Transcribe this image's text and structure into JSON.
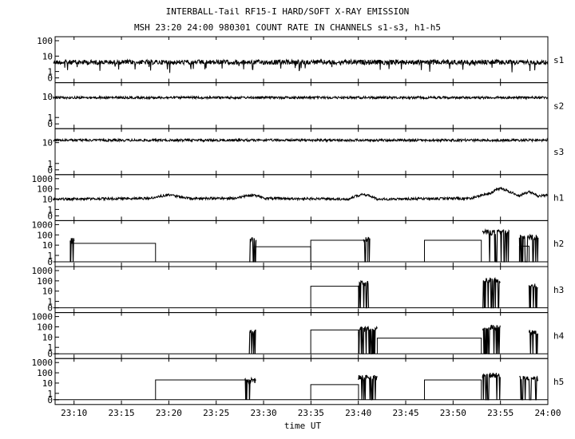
{
  "header": {
    "title": "INTERBALL-Tail RF15-I HARD/SOFT X-RAY EMISSION",
    "subtitle": "MSH 23:20 24:00 980301  COUNT RATE IN CHANNELS s1-s3, h1-h5"
  },
  "chart_data": {
    "type": "line",
    "xlabel": "time UT",
    "x_range": [
      "23:08",
      "24:00"
    ],
    "x_ticks": [
      "23:10",
      "23:15",
      "23:20",
      "23:25",
      "23:30",
      "23:35",
      "23:40",
      "23:45",
      "23:50",
      "23:55",
      "24:00"
    ],
    "yscale": "log",
    "grid": false,
    "panels": [
      {
        "name": "s1",
        "yticks": [
          "100",
          "10",
          "1",
          "0"
        ],
        "ymax": 100,
        "baseline": [
          [
            23.13,
            4
          ]
        ],
        "segments": []
      },
      {
        "name": "s2",
        "yticks": [
          "10",
          "1",
          "0"
        ],
        "ymax": 30,
        "baseline": [
          [
            23.13,
            9
          ]
        ],
        "segments": []
      },
      {
        "name": "s3",
        "yticks": [
          "10",
          "1",
          "0"
        ],
        "ymax": 30,
        "baseline": [
          [
            23.13,
            13
          ]
        ],
        "segments": []
      },
      {
        "name": "h1",
        "yticks": [
          "1000",
          "100",
          "10",
          "1",
          "0"
        ],
        "ymax": 1000,
        "baseline": [
          [
            23.13,
            10
          ],
          [
            23.3,
            12
          ],
          [
            23.333,
            25
          ],
          [
            23.367,
            12
          ],
          [
            23.45,
            12
          ],
          [
            23.483,
            25
          ],
          [
            23.5,
            12
          ],
          [
            23.65,
            10
          ],
          [
            23.675,
            30
          ],
          [
            23.7,
            10
          ],
          [
            23.867,
            12
          ],
          [
            23.9,
            35
          ],
          [
            23.917,
            120
          ],
          [
            23.933,
            50
          ],
          [
            23.95,
            20
          ],
          [
            23.967,
            50
          ],
          [
            23.983,
            20
          ],
          [
            24.0,
            25
          ]
        ],
        "segments": []
      },
      {
        "name": "h2",
        "yticks": [
          "1000",
          "100",
          "10",
          "1",
          "0"
        ],
        "ymax": 1000,
        "baseline": [
          [
            23.13,
            0
          ]
        ],
        "segments": [
          [
            23.16,
            23.31,
            15
          ],
          [
            23.483,
            23.583,
            7
          ],
          [
            23.583,
            23.683,
            30
          ],
          [
            23.783,
            23.883,
            30
          ],
          [
            23.95,
            23.967,
            8
          ]
        ],
        "bursts": [
          [
            23.16,
            23.167,
            50
          ],
          [
            23.475,
            23.487,
            60
          ],
          [
            23.675,
            23.687,
            60
          ],
          [
            23.885,
            23.933,
            300
          ],
          [
            23.95,
            23.983,
            100
          ]
        ]
      },
      {
        "name": "h3",
        "yticks": [
          "1000",
          "100",
          "10",
          "1",
          "0"
        ],
        "ymax": 1000,
        "baseline": [
          [
            23.13,
            0
          ]
        ],
        "segments": [
          [
            23.583,
            23.667,
            30
          ]
        ],
        "bursts": [
          [
            23.667,
            23.685,
            100
          ],
          [
            23.885,
            23.917,
            200
          ],
          [
            23.967,
            23.983,
            50
          ]
        ]
      },
      {
        "name": "h4",
        "yticks": [
          "1000",
          "100",
          "10",
          "1",
          "0"
        ],
        "ymax": 1000,
        "baseline": [
          [
            23.13,
            0
          ]
        ],
        "segments": [
          [
            23.583,
            23.667,
            50
          ],
          [
            23.7,
            23.883,
            8
          ]
        ],
        "bursts": [
          [
            23.475,
            23.487,
            50
          ],
          [
            23.667,
            23.7,
            100
          ],
          [
            23.885,
            23.917,
            150
          ],
          [
            23.967,
            23.983,
            50
          ]
        ]
      },
      {
        "name": "h5",
        "yticks": [
          "1000",
          "100",
          "10",
          "1",
          "0"
        ],
        "ymax": 1000,
        "baseline": [
          [
            23.13,
            0
          ]
        ],
        "segments": [
          [
            23.31,
            23.475,
            20
          ],
          [
            23.583,
            23.667,
            7
          ],
          [
            23.783,
            23.883,
            20
          ]
        ],
        "bursts": [
          [
            23.467,
            23.487,
            30
          ],
          [
            23.667,
            23.7,
            60
          ],
          [
            23.885,
            23.917,
            100
          ],
          [
            23.95,
            23.983,
            50
          ]
        ]
      }
    ]
  }
}
